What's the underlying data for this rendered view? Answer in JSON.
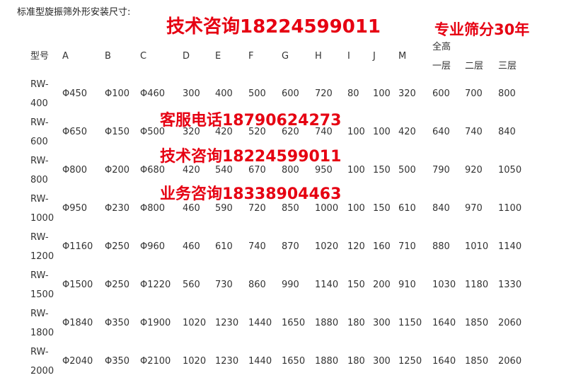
{
  "title": "标准型旋振筛外形安装尺寸:",
  "overlays": {
    "tech_top": "技术咨询18224599011",
    "years": "专业筛分30年",
    "service": "客服电话18790624273",
    "tech_mid": "技术咨询18224599011",
    "business": "业务咨询18338904463"
  },
  "table": {
    "headers": [
      "型号",
      "A",
      "B",
      "C",
      "D",
      "E",
      "F",
      "G",
      "H",
      "I",
      "J",
      "M",
      "一层",
      "二层",
      "三层"
    ],
    "group_header": "全高",
    "rows": [
      [
        "RW-",
        "400",
        "Φ450",
        "Φ100",
        "Φ460",
        "300",
        "400",
        "500",
        "600",
        "720",
        "80",
        "100",
        "320",
        "600",
        "700",
        "800"
      ],
      [
        "RW-",
        "600",
        "Φ650",
        "Φ150",
        "Φ500",
        "320",
        "420",
        "520",
        "620",
        "740",
        "100",
        "100",
        "420",
        "640",
        "740",
        "840"
      ],
      [
        "RW-",
        "800",
        "Φ800",
        "Φ200",
        "Φ680",
        "420",
        "540",
        "670",
        "800",
        "950",
        "100",
        "150",
        "500",
        "790",
        "920",
        "1050"
      ],
      [
        "RW-",
        "1000",
        "Φ950",
        "Φ230",
        "Φ800",
        "460",
        "590",
        "720",
        "850",
        "1000",
        "100",
        "150",
        "610",
        "840",
        "970",
        "1100"
      ],
      [
        "RW-",
        "1200",
        "Φ1160",
        "Φ250",
        "Φ960",
        "460",
        "610",
        "740",
        "870",
        "1020",
        "120",
        "160",
        "710",
        "880",
        "1010",
        "1140"
      ],
      [
        "RW-",
        "1500",
        "Φ1500",
        "Φ250",
        "Φ1220",
        "560",
        "730",
        "860",
        "990",
        "1140",
        "150",
        "200",
        "910",
        "1030",
        "1180",
        "1330"
      ],
      [
        "RW-",
        "1800",
        "Φ1840",
        "Φ350",
        "Φ1900",
        "1020",
        "1230",
        "1440",
        "1650",
        "1880",
        "180",
        "300",
        "1150",
        "1640",
        "1850",
        "2060"
      ],
      [
        "RW-",
        "2000",
        "Φ2040",
        "Φ350",
        "Φ2100",
        "1020",
        "1230",
        "1440",
        "1650",
        "1880",
        "180",
        "300",
        "1250",
        "1640",
        "1850",
        "2060"
      ]
    ]
  }
}
